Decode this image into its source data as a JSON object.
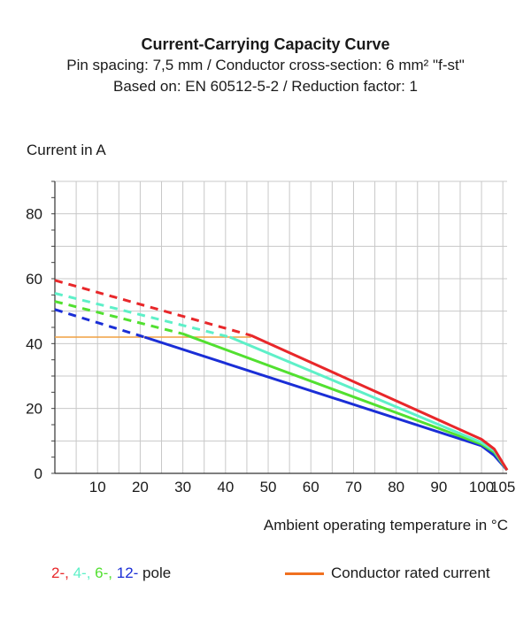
{
  "title_block": {
    "title": "Current-Carrying Capacity Curve",
    "line1": "Pin spacing: 7,5 mm / Conductor cross-section: 6 mm² \"f-st\"",
    "line2": "Based on: EN 60512-5-2 / Reduction factor: 1"
  },
  "colors": {
    "pole2": "#e8272a",
    "pole4": "#5ef0c8",
    "pole6": "#52e030",
    "pole12": "#1a2ed6",
    "rated": "#f07020",
    "grid": "#c8c8c8"
  },
  "legend": {
    "pole2": "2-,",
    "pole4": "4-,",
    "pole6": "6-,",
    "pole12": "12-",
    "pole_suffix": "pole",
    "rated": "Conductor rated current"
  },
  "chart_data": {
    "type": "line",
    "title": "Current-Carrying Capacity Curve",
    "xlabel": "Ambient operating temperature in °C",
    "ylabel": "Current in A",
    "xlim": [
      0,
      106
    ],
    "ylim": [
      0,
      90
    ],
    "x_ticks": [
      10,
      20,
      30,
      40,
      50,
      60,
      70,
      80,
      90,
      100,
      105
    ],
    "y_ticks": [
      0,
      20,
      40,
      60,
      80
    ],
    "series": [
      {
        "name": "2-pole",
        "color_key": "pole2",
        "dashed": [
          [
            0,
            59.5
          ],
          [
            46,
            42.5
          ]
        ],
        "solid": [
          [
            46,
            42.5
          ],
          [
            100,
            10.5
          ],
          [
            103,
            7.5
          ],
          [
            106,
            1
          ]
        ]
      },
      {
        "name": "4-pole",
        "color_key": "pole4",
        "dashed": [
          [
            0,
            55.5
          ],
          [
            41,
            42
          ]
        ],
        "solid": [
          [
            41,
            42
          ],
          [
            100,
            9.5
          ],
          [
            103,
            7
          ],
          [
            106,
            1
          ]
        ]
      },
      {
        "name": "6-pole",
        "color_key": "pole6",
        "dashed": [
          [
            0,
            53
          ],
          [
            30,
            43
          ]
        ],
        "solid": [
          [
            30,
            43
          ],
          [
            100,
            9
          ],
          [
            103,
            6.5
          ],
          [
            106,
            1
          ]
        ]
      },
      {
        "name": "12-pole",
        "color_key": "pole12",
        "dashed": [
          [
            0,
            50.5
          ],
          [
            21,
            42
          ]
        ],
        "solid": [
          [
            21,
            42
          ],
          [
            100,
            8.5
          ],
          [
            103,
            5.5
          ],
          [
            106,
            1
          ]
        ]
      }
    ],
    "rated_current": {
      "name": "Conductor rated current",
      "color_key": "rated",
      "value": 42,
      "x_end": 46
    }
  }
}
